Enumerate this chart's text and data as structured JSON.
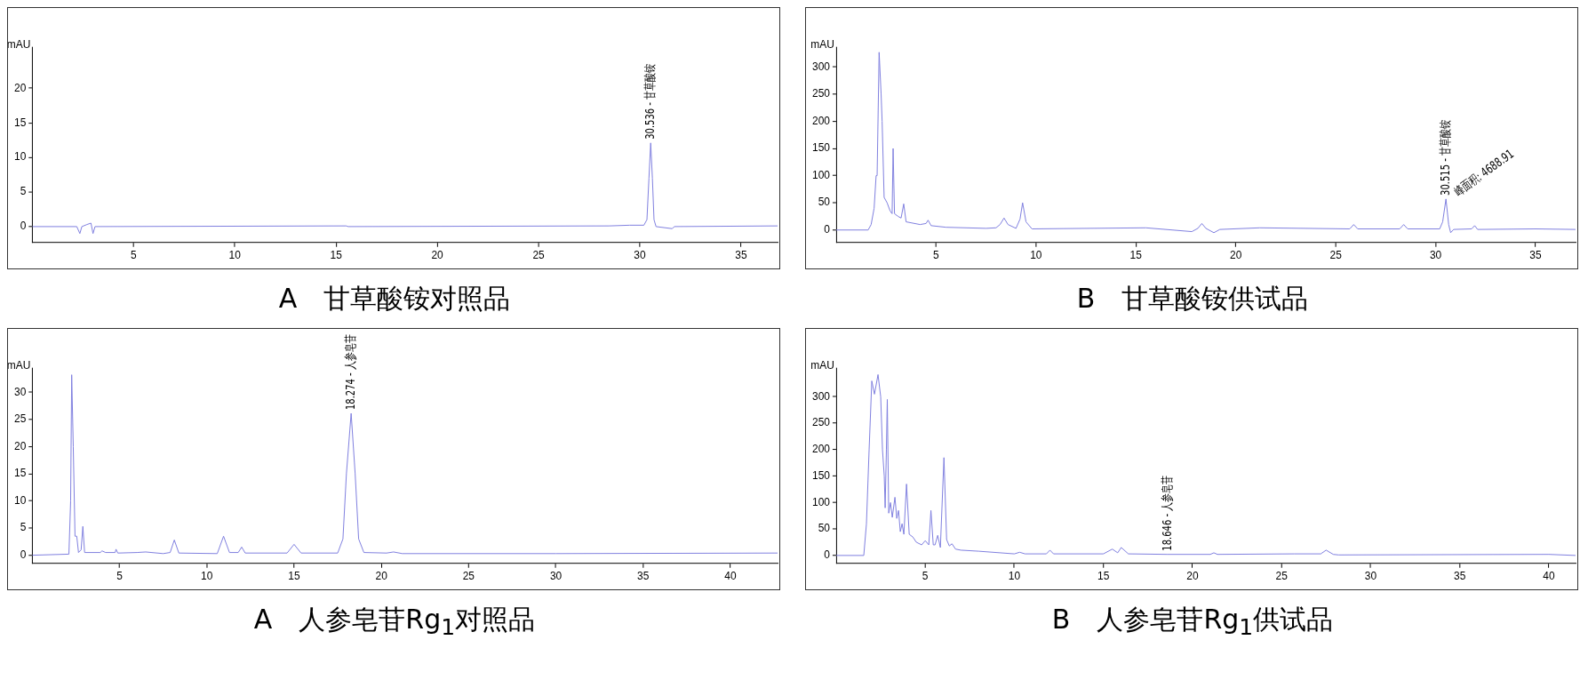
{
  "chart_data": [
    {
      "type": "line",
      "title": "A　甘草酸铵对照品",
      "ylabel": "mAU",
      "color": "#7f7fdf",
      "grid": false,
      "legend": false,
      "marker": "none",
      "line_style": "solid",
      "x": [
        0,
        2.2,
        2.35,
        2.45,
        2.7,
        2.9,
        3.0,
        3.1,
        15.5,
        15.6,
        28.5,
        29.5,
        30.2,
        30.35,
        30.45,
        30.536,
        30.62,
        30.7,
        30.8,
        31.6,
        31.7,
        36.8
      ],
      "values": [
        0,
        0,
        -1,
        0,
        0.3,
        0.5,
        -1,
        0,
        0.1,
        0,
        0.1,
        0.2,
        0.2,
        1,
        7,
        12.1,
        7,
        1,
        0,
        -0.3,
        0,
        0.1
      ],
      "xlim": [
        0,
        36.8
      ],
      "xticks": [
        5,
        10,
        15,
        20,
        25,
        30,
        35
      ],
      "ylim": [
        -2.3,
        26
      ],
      "yticks": [
        0,
        5,
        10,
        15,
        20
      ],
      "annotations": [
        {
          "text": "30.536 - 甘草酸铵",
          "x": 30.536,
          "y": 12.1
        }
      ]
    },
    {
      "type": "line",
      "title": "B　甘草酸铵供试品",
      "ylabel": "mAU",
      "color": "#7f7fdf",
      "grid": false,
      "legend": false,
      "marker": "none",
      "line_style": "solid",
      "x": [
        0,
        1.6,
        1.75,
        1.9,
        2.0,
        2.05,
        2.15,
        2.25,
        2.3,
        2.4,
        2.55,
        2.7,
        2.8,
        2.85,
        2.92,
        3.1,
        3.25,
        3.38,
        3.5,
        4.2,
        4.5,
        4.6,
        4.75,
        5.5,
        7.5,
        8.0,
        8.2,
        8.4,
        8.6,
        9.0,
        9.2,
        9.33,
        9.5,
        9.8,
        15.5,
        17.8,
        18.1,
        18.3,
        18.5,
        18.9,
        19.2,
        21.2,
        25.7,
        25.9,
        26.1,
        28.2,
        28.4,
        28.6,
        30.2,
        30.35,
        30.515,
        30.65,
        30.75,
        30.9,
        31.8,
        31.95,
        32.1,
        35.0,
        37
      ],
      "values": [
        0,
        0,
        10,
        40,
        100,
        100,
        327,
        250,
        200,
        60,
        50,
        35,
        30,
        150,
        30,
        25,
        22,
        48,
        15,
        10,
        12,
        18,
        8,
        5,
        3,
        4,
        10,
        22,
        10,
        3,
        20,
        50,
        15,
        2,
        4,
        -3,
        3,
        12,
        3,
        -5,
        1,
        4,
        2,
        10,
        2,
        2,
        10,
        2,
        2,
        15,
        57,
        10,
        -5,
        1,
        2,
        8,
        1,
        2,
        1
      ],
      "xlim": [
        0,
        37
      ],
      "xticks": [
        5,
        10,
        15,
        20,
        25,
        30,
        35
      ],
      "ylim": [
        -23,
        337
      ],
      "yticks": [
        0,
        50,
        100,
        150,
        200,
        250,
        300
      ],
      "annotations": [
        {
          "text": "30.515 - 甘草酸铵",
          "x": 30.515,
          "y": 57
        },
        {
          "text": "峰面积: 4688.91",
          "x": 30.515,
          "y": 57
        }
      ]
    },
    {
      "type": "line",
      "title": "A　人参皂苷Rg$_{1}$对照品",
      "ylabel": "mAU",
      "color": "#7f7fdf",
      "grid": false,
      "legend": false,
      "marker": "none",
      "line_style": "solid",
      "x": [
        0,
        2.1,
        2.2,
        2.26,
        2.35,
        2.45,
        2.55,
        2.65,
        2.8,
        2.9,
        3.0,
        3.9,
        4.0,
        4.2,
        4.75,
        4.8,
        4.9,
        6.0,
        6.5,
        7.5,
        7.9,
        8.14,
        8.4,
        10.6,
        10.96,
        11.3,
        11.8,
        12.0,
        12.2,
        14.6,
        15.0,
        15.4,
        17.5,
        17.8,
        18.0,
        18.27,
        18.5,
        18.7,
        19.0,
        20.3,
        20.7,
        21.2,
        30,
        42.7
      ],
      "values": [
        0,
        0.2,
        10,
        33.2,
        20,
        3.5,
        3.5,
        0.5,
        1,
        5.3,
        0.5,
        0.5,
        0.8,
        0.5,
        0.5,
        1.1,
        0.4,
        0.5,
        0.6,
        0.3,
        0.5,
        2.8,
        0.4,
        0.3,
        3.5,
        0.5,
        0.5,
        1.5,
        0.4,
        0.4,
        2.0,
        0.4,
        0.4,
        3,
        15,
        26.1,
        15,
        3,
        0.5,
        0.4,
        0.6,
        0.3,
        0.3,
        0.4
      ],
      "xlim": [
        0,
        42.7
      ],
      "xticks": [
        5,
        10,
        15,
        20,
        25,
        30,
        35,
        40
      ],
      "ylim": [
        -1.5,
        34.5
      ],
      "yticks": [
        0,
        5,
        10,
        15,
        20,
        25,
        30
      ],
      "annotations": [
        {
          "text": "18.274 - 人参皂苷",
          "x": 18.274,
          "y": 26.1
        }
      ]
    },
    {
      "type": "line",
      "title": "B　人参皂苷Rg$_{1}$供试品",
      "ylabel": "mAU",
      "color": "#7f7fdf",
      "grid": false,
      "legend": false,
      "marker": "none",
      "line_style": "solid",
      "x": [
        0,
        1.55,
        1.7,
        1.85,
        2.0,
        2.15,
        2.35,
        2.5,
        2.6,
        2.7,
        2.75,
        2.82,
        2.87,
        2.95,
        3.05,
        3.15,
        3.3,
        3.4,
        3.5,
        3.6,
        3.7,
        3.8,
        3.95,
        4.1,
        4.3,
        4.5,
        4.8,
        5.0,
        5.2,
        5.32,
        5.45,
        5.55,
        5.7,
        5.85,
        6.05,
        6.2,
        6.35,
        6.5,
        6.7,
        7.0,
        8.0,
        10.0,
        10.3,
        10.6,
        11.8,
        12.0,
        12.2,
        15.0,
        15.5,
        15.8,
        16.0,
        16.4,
        18.6,
        21.0,
        21.2,
        21.4,
        25.7,
        27.2,
        27.5,
        27.9,
        28.2,
        40.0,
        41.5
      ],
      "values": [
        0,
        0,
        60,
        200,
        330,
        305,
        342,
        300,
        200,
        150,
        90,
        200,
        295,
        80,
        100,
        72,
        110,
        70,
        85,
        45,
        60,
        40,
        135,
        40,
        35,
        25,
        20,
        28,
        20,
        85,
        20,
        20,
        38,
        15,
        185,
        30,
        18,
        22,
        12,
        10,
        8,
        3,
        6,
        3,
        3,
        10,
        3,
        3,
        12,
        5,
        15,
        3,
        2,
        2,
        5,
        2,
        3,
        3,
        10,
        2,
        1,
        2,
        0
      ],
      "xlim": [
        0,
        41.5
      ],
      "xticks": [
        5,
        10,
        15,
        20,
        25,
        30,
        35,
        40
      ],
      "ylim": [
        -15,
        355
      ],
      "yticks": [
        0,
        50,
        100,
        150,
        200,
        250,
        300
      ],
      "annotations": [
        {
          "text": "18.646 - 人参皂苷",
          "x": 18.646,
          "y": 2
        }
      ]
    }
  ]
}
